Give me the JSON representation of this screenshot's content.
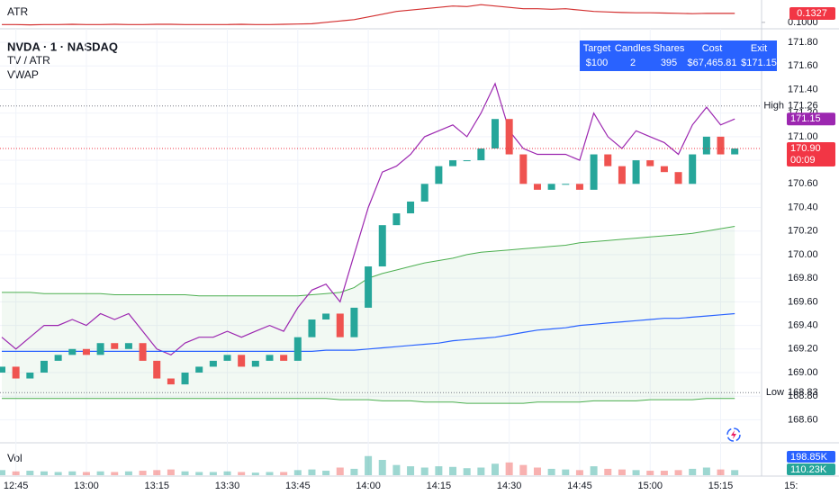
{
  "chart_data": [
    {
      "type": "line",
      "title": "ATR",
      "color": "#d32f2f",
      "values": [
        0.092,
        0.092,
        0.091,
        0.092,
        0.092,
        0.093,
        0.092,
        0.092,
        0.093,
        0.092,
        0.092,
        0.093,
        0.093,
        0.092,
        0.092,
        0.092,
        0.092,
        0.093,
        0.092,
        0.092,
        0.093,
        0.094,
        0.095,
        0.1,
        0.105,
        0.11,
        0.12,
        0.13,
        0.14,
        0.145,
        0.15,
        0.155,
        0.16,
        0.158,
        0.165,
        0.16,
        0.155,
        0.15,
        0.15,
        0.148,
        0.15,
        0.145,
        0.14,
        0.138,
        0.136,
        0.135,
        0.135,
        0.134,
        0.133,
        0.132,
        0.133,
        0.1327,
        0.1327
      ],
      "ylim": [
        0.083,
        0.182
      ],
      "yticks": [
        {
          "value": 0.1,
          "label": "0.1000"
        }
      ],
      "last": {
        "value": 0.1327,
        "color": "#f23645"
      }
    },
    {
      "type": "candlestick",
      "title": "NVDA · 1 · NASDAQ",
      "x": [
        "12:42",
        "12:45",
        "12:48",
        "12:51",
        "12:54",
        "12:57",
        "13:00",
        "13:03",
        "13:06",
        "13:09",
        "13:12",
        "13:15",
        "13:18",
        "13:21",
        "13:24",
        "13:27",
        "13:30",
        "13:33",
        "13:36",
        "13:39",
        "13:42",
        "13:45",
        "13:48",
        "13:51",
        "13:54",
        "13:57",
        "14:00",
        "14:03",
        "14:06",
        "14:09",
        "14:12",
        "14:15",
        "14:18",
        "14:21",
        "14:24",
        "14:27",
        "14:30",
        "14:33",
        "14:36",
        "14:39",
        "14:42",
        "14:45",
        "14:48",
        "14:51",
        "14:54",
        "14:57",
        "15:00",
        "15:03",
        "15:06",
        "15:09",
        "15:12",
        "15:15",
        "15:18"
      ],
      "open": [
        169.0,
        169.05,
        168.95,
        169.0,
        169.1,
        169.15,
        169.2,
        169.15,
        169.25,
        169.2,
        169.25,
        169.1,
        168.95,
        168.9,
        169.0,
        169.05,
        169.1,
        169.15,
        169.05,
        169.1,
        169.15,
        169.1,
        169.3,
        169.45,
        169.5,
        169.3,
        169.55,
        169.9,
        170.25,
        170.35,
        170.45,
        170.6,
        170.75,
        170.8,
        170.8,
        170.9,
        171.15,
        170.85,
        170.6,
        170.55,
        170.6,
        170.6,
        170.55,
        170.85,
        170.75,
        170.6,
        170.8,
        170.75,
        170.7,
        170.6,
        170.85,
        171.0,
        170.85
      ],
      "high": {
        "text": "High",
        "value": 171.26
      },
      "low": {
        "text": "Low",
        "value": 168.83
      },
      "close": [
        169.05,
        168.95,
        169.0,
        169.1,
        169.15,
        169.2,
        169.15,
        169.25,
        169.2,
        169.25,
        169.1,
        168.95,
        168.9,
        169.0,
        169.05,
        169.1,
        169.15,
        169.05,
        169.1,
        169.15,
        169.1,
        169.3,
        169.45,
        169.5,
        169.3,
        169.55,
        169.9,
        170.25,
        170.35,
        170.45,
        170.6,
        170.75,
        170.8,
        170.8,
        170.9,
        171.15,
        170.85,
        170.6,
        170.55,
        170.6,
        170.6,
        170.55,
        170.85,
        170.75,
        170.6,
        170.8,
        170.75,
        170.7,
        170.6,
        170.85,
        171.0,
        170.85,
        170.9
      ],
      "up_color": "#26a69a",
      "down_color": "#ef5350",
      "series": [
        {
          "name": "TV / ATR",
          "color": "#9c27b0",
          "values": [
            169.3,
            169.2,
            169.3,
            169.4,
            169.4,
            169.45,
            169.4,
            169.5,
            169.45,
            169.5,
            169.35,
            169.2,
            169.15,
            169.25,
            169.3,
            169.3,
            169.35,
            169.3,
            169.35,
            169.4,
            169.35,
            169.55,
            169.7,
            169.75,
            169.6,
            170.0,
            170.4,
            170.7,
            170.75,
            170.85,
            171.0,
            171.05,
            171.1,
            171.0,
            171.2,
            171.45,
            171.05,
            170.9,
            170.85,
            170.85,
            170.85,
            170.8,
            171.2,
            171.0,
            170.9,
            171.05,
            171.0,
            170.95,
            170.85,
            171.1,
            171.25,
            171.1,
            171.15
          ]
        },
        {
          "name": "VWAP",
          "color": "#2962ff",
          "values": [
            169.18,
            169.18,
            169.18,
            169.18,
            169.18,
            169.18,
            169.18,
            169.18,
            169.18,
            169.18,
            169.18,
            169.18,
            169.18,
            169.18,
            169.18,
            169.18,
            169.18,
            169.18,
            169.18,
            169.18,
            169.18,
            169.18,
            169.18,
            169.19,
            169.19,
            169.19,
            169.2,
            169.21,
            169.22,
            169.23,
            169.24,
            169.25,
            169.27,
            169.28,
            169.29,
            169.3,
            169.32,
            169.34,
            169.36,
            169.37,
            169.38,
            169.4,
            169.41,
            169.42,
            169.43,
            169.44,
            169.45,
            169.46,
            169.46,
            169.47,
            169.48,
            169.49,
            169.5
          ]
        }
      ],
      "band": {
        "color": "#4caf50",
        "upper": [
          169.68,
          169.68,
          169.68,
          169.67,
          169.67,
          169.67,
          169.67,
          169.67,
          169.66,
          169.66,
          169.66,
          169.66,
          169.66,
          169.66,
          169.65,
          169.65,
          169.65,
          169.65,
          169.65,
          169.65,
          169.65,
          169.65,
          169.66,
          169.67,
          169.68,
          169.72,
          169.8,
          169.84,
          169.87,
          169.9,
          169.93,
          169.95,
          169.97,
          170.0,
          170.02,
          170.03,
          170.04,
          170.05,
          170.06,
          170.07,
          170.08,
          170.1,
          170.11,
          170.12,
          170.13,
          170.14,
          170.15,
          170.16,
          170.17,
          170.18,
          170.2,
          170.22,
          170.24
        ],
        "lower": [
          168.78,
          168.78,
          168.78,
          168.78,
          168.78,
          168.78,
          168.78,
          168.78,
          168.78,
          168.78,
          168.78,
          168.78,
          168.78,
          168.78,
          168.78,
          168.78,
          168.78,
          168.78,
          168.78,
          168.78,
          168.78,
          168.78,
          168.78,
          168.78,
          168.77,
          168.77,
          168.77,
          168.76,
          168.76,
          168.76,
          168.75,
          168.75,
          168.75,
          168.74,
          168.74,
          168.74,
          168.74,
          168.74,
          168.75,
          168.75,
          168.75,
          168.75,
          168.76,
          168.76,
          168.76,
          168.76,
          168.77,
          168.77,
          168.77,
          168.77,
          168.78,
          168.78,
          168.78
        ]
      },
      "ylim": [
        168.42,
        171.93
      ],
      "yticks": [
        {
          "value": 171.8,
          "label": "171.80"
        },
        {
          "value": 171.6,
          "label": "171.60"
        },
        {
          "value": 171.4,
          "label": "171.40"
        },
        {
          "value": 171.2,
          "label": "171.20"
        },
        {
          "value": 171.0,
          "label": "171.00"
        },
        {
          "value": 170.8,
          "label": "170.80"
        },
        {
          "value": 170.6,
          "label": "170.60"
        },
        {
          "value": 170.4,
          "label": "170.40"
        },
        {
          "value": 170.2,
          "label": "170.20"
        },
        {
          "value": 170.0,
          "label": "170.00"
        },
        {
          "value": 169.8,
          "label": "169.80"
        },
        {
          "value": 169.6,
          "label": "169.60"
        },
        {
          "value": 169.4,
          "label": "169.40"
        },
        {
          "value": 169.2,
          "label": "169.20"
        },
        {
          "value": 169.0,
          "label": "169.00"
        },
        {
          "value": 168.8,
          "label": "168.80"
        },
        {
          "value": 168.6,
          "label": "168.60"
        }
      ],
      "xlim": [
        "12:42",
        "15:40"
      ],
      "xticks": [
        "12:45",
        "13:00",
        "13:15",
        "13:30",
        "13:45",
        "14:00",
        "14:15",
        "14:30",
        "14:45",
        "15:00",
        "15:15",
        {
          "value": "15:30",
          "label": "15:"
        }
      ],
      "grid": true,
      "exit": {
        "value": 171.15,
        "label": "171.15",
        "color": "#9c27b0"
      },
      "last": {
        "value": 170.9,
        "label": "170.90",
        "countdown": "00:09",
        "color": "#f23645"
      }
    },
    {
      "type": "volume",
      "title": "Vol",
      "values": [
        40,
        30,
        35,
        30,
        25,
        30,
        25,
        30,
        25,
        30,
        35,
        40,
        45,
        30,
        25,
        25,
        30,
        25,
        20,
        25,
        25,
        40,
        45,
        35,
        60,
        50,
        150,
        120,
        80,
        70,
        60,
        70,
        65,
        55,
        60,
        90,
        100,
        80,
        60,
        50,
        45,
        40,
        70,
        50,
        45,
        40,
        35,
        35,
        40,
        50,
        60,
        45,
        40
      ],
      "ylim": [
        0,
        240
      ],
      "badges": [
        {
          "label": "198.85K",
          "color": "#2962ff"
        },
        {
          "label": "110.23K",
          "color": "#26a69a"
        }
      ]
    }
  ],
  "info_table": {
    "headers": [
      "Target",
      "Candles",
      "Shares",
      "Cost",
      "Exit"
    ],
    "row": [
      "$100",
      "2",
      "395",
      "$67,465.81",
      "$171.15"
    ]
  }
}
